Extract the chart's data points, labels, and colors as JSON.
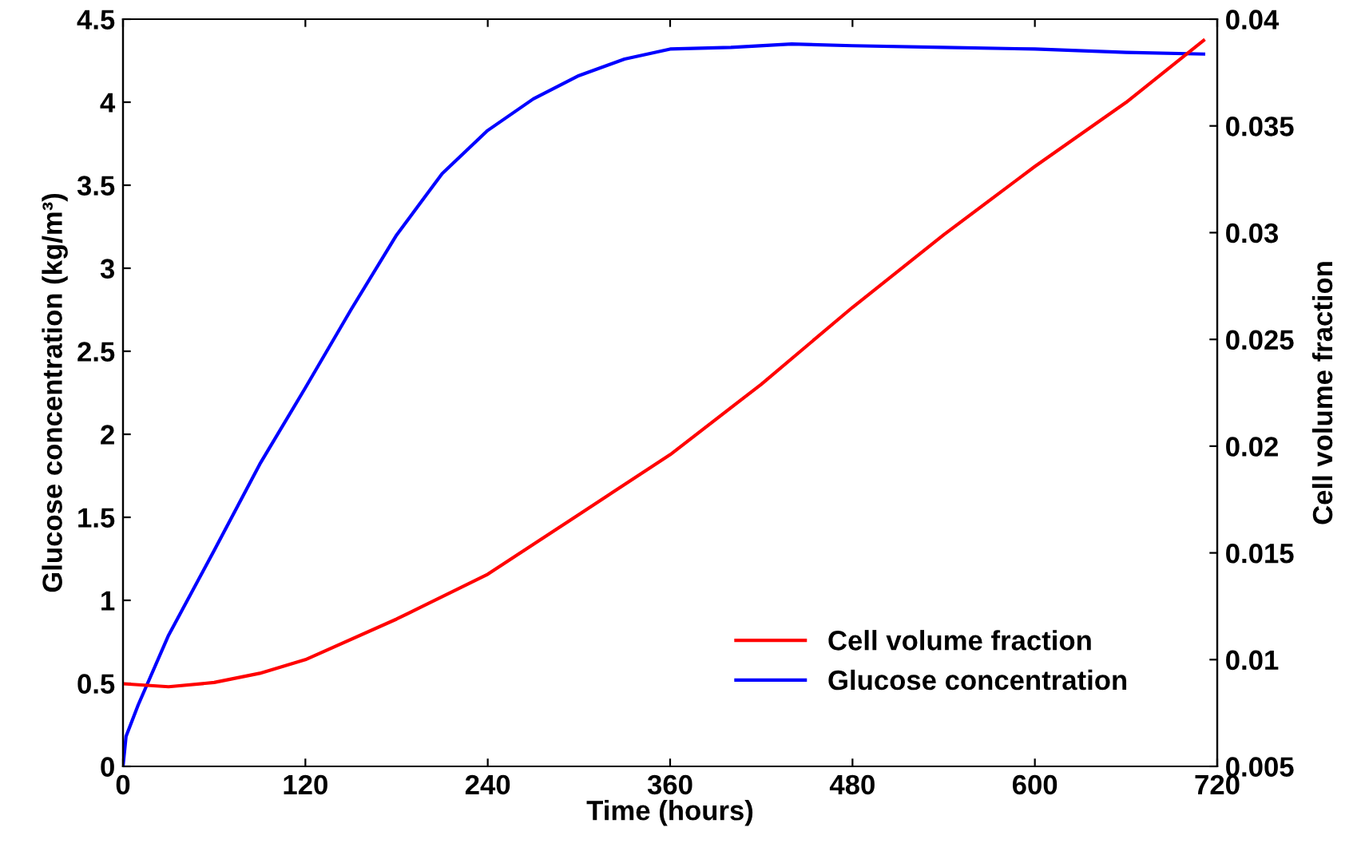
{
  "chart_data": {
    "type": "line",
    "xlabel": "Time (hours)",
    "ylabel": "Glucose concentration (kg/m³)",
    "y2label": "Cell volume fraction",
    "xlim": [
      0,
      720
    ],
    "xticks": [
      0,
      120,
      240,
      360,
      480,
      600,
      720
    ],
    "ylim": [
      0,
      4.5
    ],
    "yticks": [
      0,
      0.5,
      1,
      1.5,
      2,
      2.5,
      3,
      3.5,
      4,
      4.5
    ],
    "y2lim": [
      0.005,
      0.04
    ],
    "y2ticks": [
      0.005,
      0.01,
      0.015,
      0.02,
      0.025,
      0.03,
      0.035,
      0.04
    ],
    "grid": false,
    "legend": "bottom right",
    "marker": "none",
    "line_style": "solid",
    "series": [
      {
        "name": "Cell volume fraction",
        "color": "#ff0000",
        "axis": "y2",
        "x": [
          0,
          30,
          60,
          90,
          120,
          180,
          240,
          300,
          360,
          420,
          480,
          540,
          600,
          660,
          711
        ],
        "values": [
          0.00887,
          0.00873,
          0.00893,
          0.00936,
          0.01,
          0.0119,
          0.014,
          0.0168,
          0.0196,
          0.0229,
          0.0265,
          0.0299,
          0.0331,
          0.0361,
          0.039
        ]
      },
      {
        "name": "Glucose concentration",
        "color": "#0000ff",
        "axis": "y",
        "x": [
          0,
          2,
          10,
          30,
          60,
          90,
          120,
          150,
          180,
          210,
          240,
          270,
          300,
          330,
          360,
          400,
          440,
          480,
          540,
          600,
          660,
          711
        ],
        "values": [
          0,
          0.18,
          0.37,
          0.79,
          1.3,
          1.82,
          2.28,
          2.75,
          3.2,
          3.57,
          3.83,
          4.02,
          4.16,
          4.26,
          4.32,
          4.33,
          4.35,
          4.34,
          4.33,
          4.32,
          4.3,
          4.29
        ]
      }
    ]
  }
}
